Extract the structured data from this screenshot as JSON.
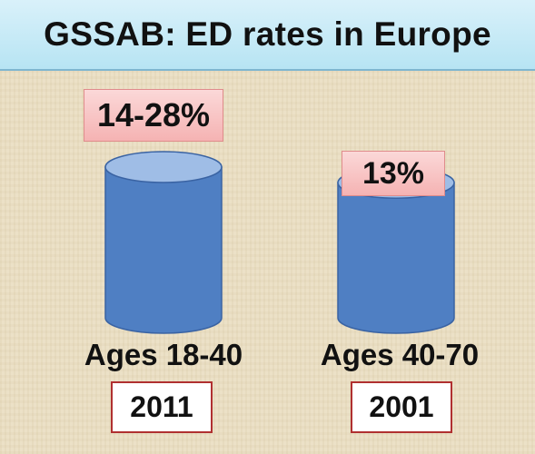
{
  "title": "GSSAB: ED rates in Europe",
  "colors": {
    "cylinder_fill": "#4f7fc3",
    "cylinder_top": "#9fbde6",
    "cylinder_stroke": "#3a63a3",
    "value_box": "#f7c4c4",
    "year_box_border": "#b03030",
    "title_bar": "#c6eaf6"
  },
  "chart_data": {
    "type": "bar",
    "title": "GSSAB: ED rates in Europe",
    "categories": [
      "Ages 18-40",
      "Ages 40-70"
    ],
    "series": [
      {
        "values": [
          28,
          13
        ]
      }
    ],
    "value_labels": [
      "14-28%",
      "13%"
    ],
    "years": [
      "2011",
      "2001"
    ],
    "range_low": [
      14,
      13
    ],
    "bar_shape": "cylinder",
    "grid": false
  }
}
